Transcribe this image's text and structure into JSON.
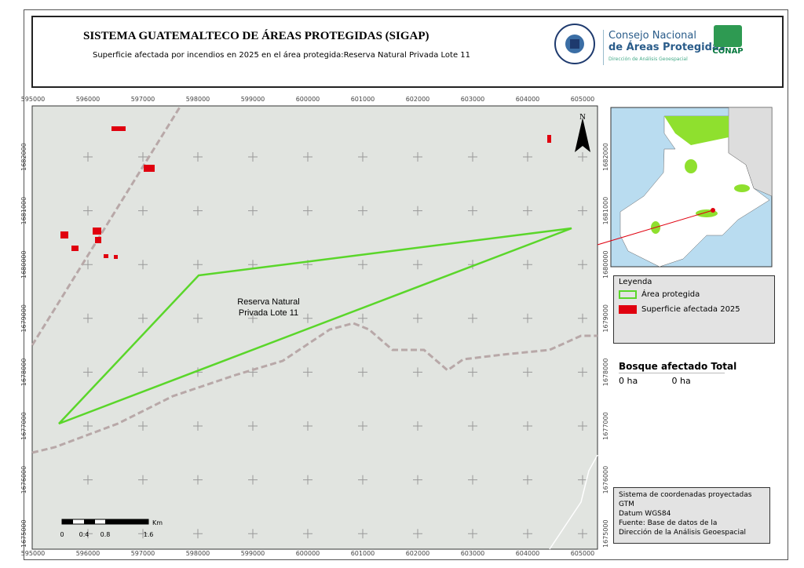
{
  "header": {
    "title": "SISTEMA GUATEMALTECO DE ÁREAS PROTEGIDAS  (SIGAP)",
    "subtitle": "Superficie afectada por incendios en 2025 en el área protegida:Reserva Natural Privada Lote 11",
    "logo_text": "GOBIERNO DE LA REPÚBLICA GUATEMALA",
    "consejo_line1": "Consejo Nacional",
    "consejo_line2": "de Áreas Protegidas",
    "consejo_line3": "Dirección de Análisis Geoespacial",
    "conap": "CONAP"
  },
  "map": {
    "x_ticks": [
      "595000",
      "596000",
      "597000",
      "598000",
      "599000",
      "600000",
      "601000",
      "602000",
      "603000",
      "604000",
      "605000"
    ],
    "y_ticks": [
      "1682000",
      "1681000",
      "1680000",
      "1679000",
      "1678000",
      "1677000",
      "1676000",
      "1675000"
    ],
    "area_label": "Reserva Natural Privada Lote 11",
    "north": "N",
    "scale": {
      "labels": [
        "0",
        "0.4",
        "0.8",
        "1.6"
      ],
      "unit": "Km"
    },
    "colors": {
      "protected_area": "#5ad62a",
      "affected": "#e0000f",
      "background": "#e1e4e0"
    }
  },
  "legend": {
    "title": "Leyenda",
    "items": [
      {
        "label": "Área protegida",
        "color": "#5ad62a"
      },
      {
        "label": "Superficie afectada 2025",
        "color": "#e0000f"
      }
    ]
  },
  "stats": {
    "headers": [
      "Bosque afectado",
      "Total"
    ],
    "values": [
      "0 ha",
      "0 ha"
    ]
  },
  "info": {
    "lines": [
      "Sistema de coordenadas proyectadas",
      "GTM",
      "Datum WGS84",
      "Fuente: Base de datos de la",
      "Dirección de la Análisis Geoespacial"
    ]
  }
}
